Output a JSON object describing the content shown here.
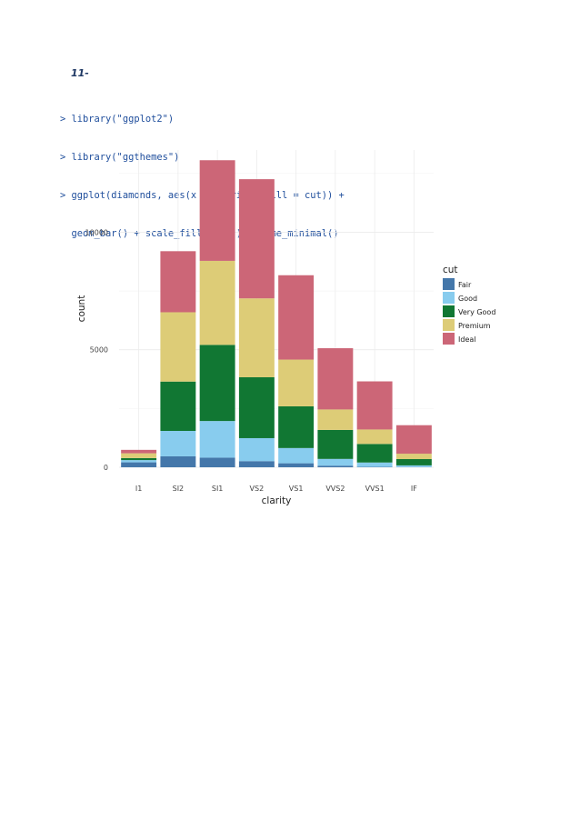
{
  "document": {
    "heading": "11-",
    "code_lines": [
      "> library(\"ggplot2\")",
      "> library(\"ggthemes\")",
      "> ggplot(diamonds, aes(x = clarity, fill = cut)) +",
      "  geom_bar() + scale_fill_ptol() +theme_minimal()"
    ]
  },
  "chart_data": {
    "type": "bar",
    "stacked": true,
    "categories": [
      "I1",
      "SI2",
      "SI1",
      "VS2",
      "VS1",
      "VVS2",
      "VVS1",
      "IF"
    ],
    "xlabel": "clarity",
    "ylabel": "count",
    "ylim": [
      0,
      13500
    ],
    "yticks": [
      0,
      5000,
      10000
    ],
    "grid": true,
    "legend": {
      "title": "cut",
      "position": "right"
    },
    "series": [
      {
        "name": "Fair",
        "color": "#4477AA",
        "values": [
          210,
          466,
          408,
          261,
          170,
          69,
          17,
          9
        ]
      },
      {
        "name": "Good",
        "color": "#88CCEE",
        "values": [
          96,
          1081,
          1560,
          978,
          648,
          286,
          186,
          71
        ]
      },
      {
        "name": "Very Good",
        "color": "#117733",
        "values": [
          84,
          2100,
          3240,
          2591,
          1775,
          1235,
          789,
          268
        ]
      },
      {
        "name": "Premium",
        "color": "#DDCC77",
        "values": [
          205,
          2949,
          3575,
          3357,
          1989,
          870,
          616,
          230
        ]
      },
      {
        "name": "Ideal",
        "color": "#CC6677",
        "values": [
          146,
          2598,
          4282,
          5071,
          3589,
          2606,
          2047,
          1212
        ]
      }
    ]
  }
}
